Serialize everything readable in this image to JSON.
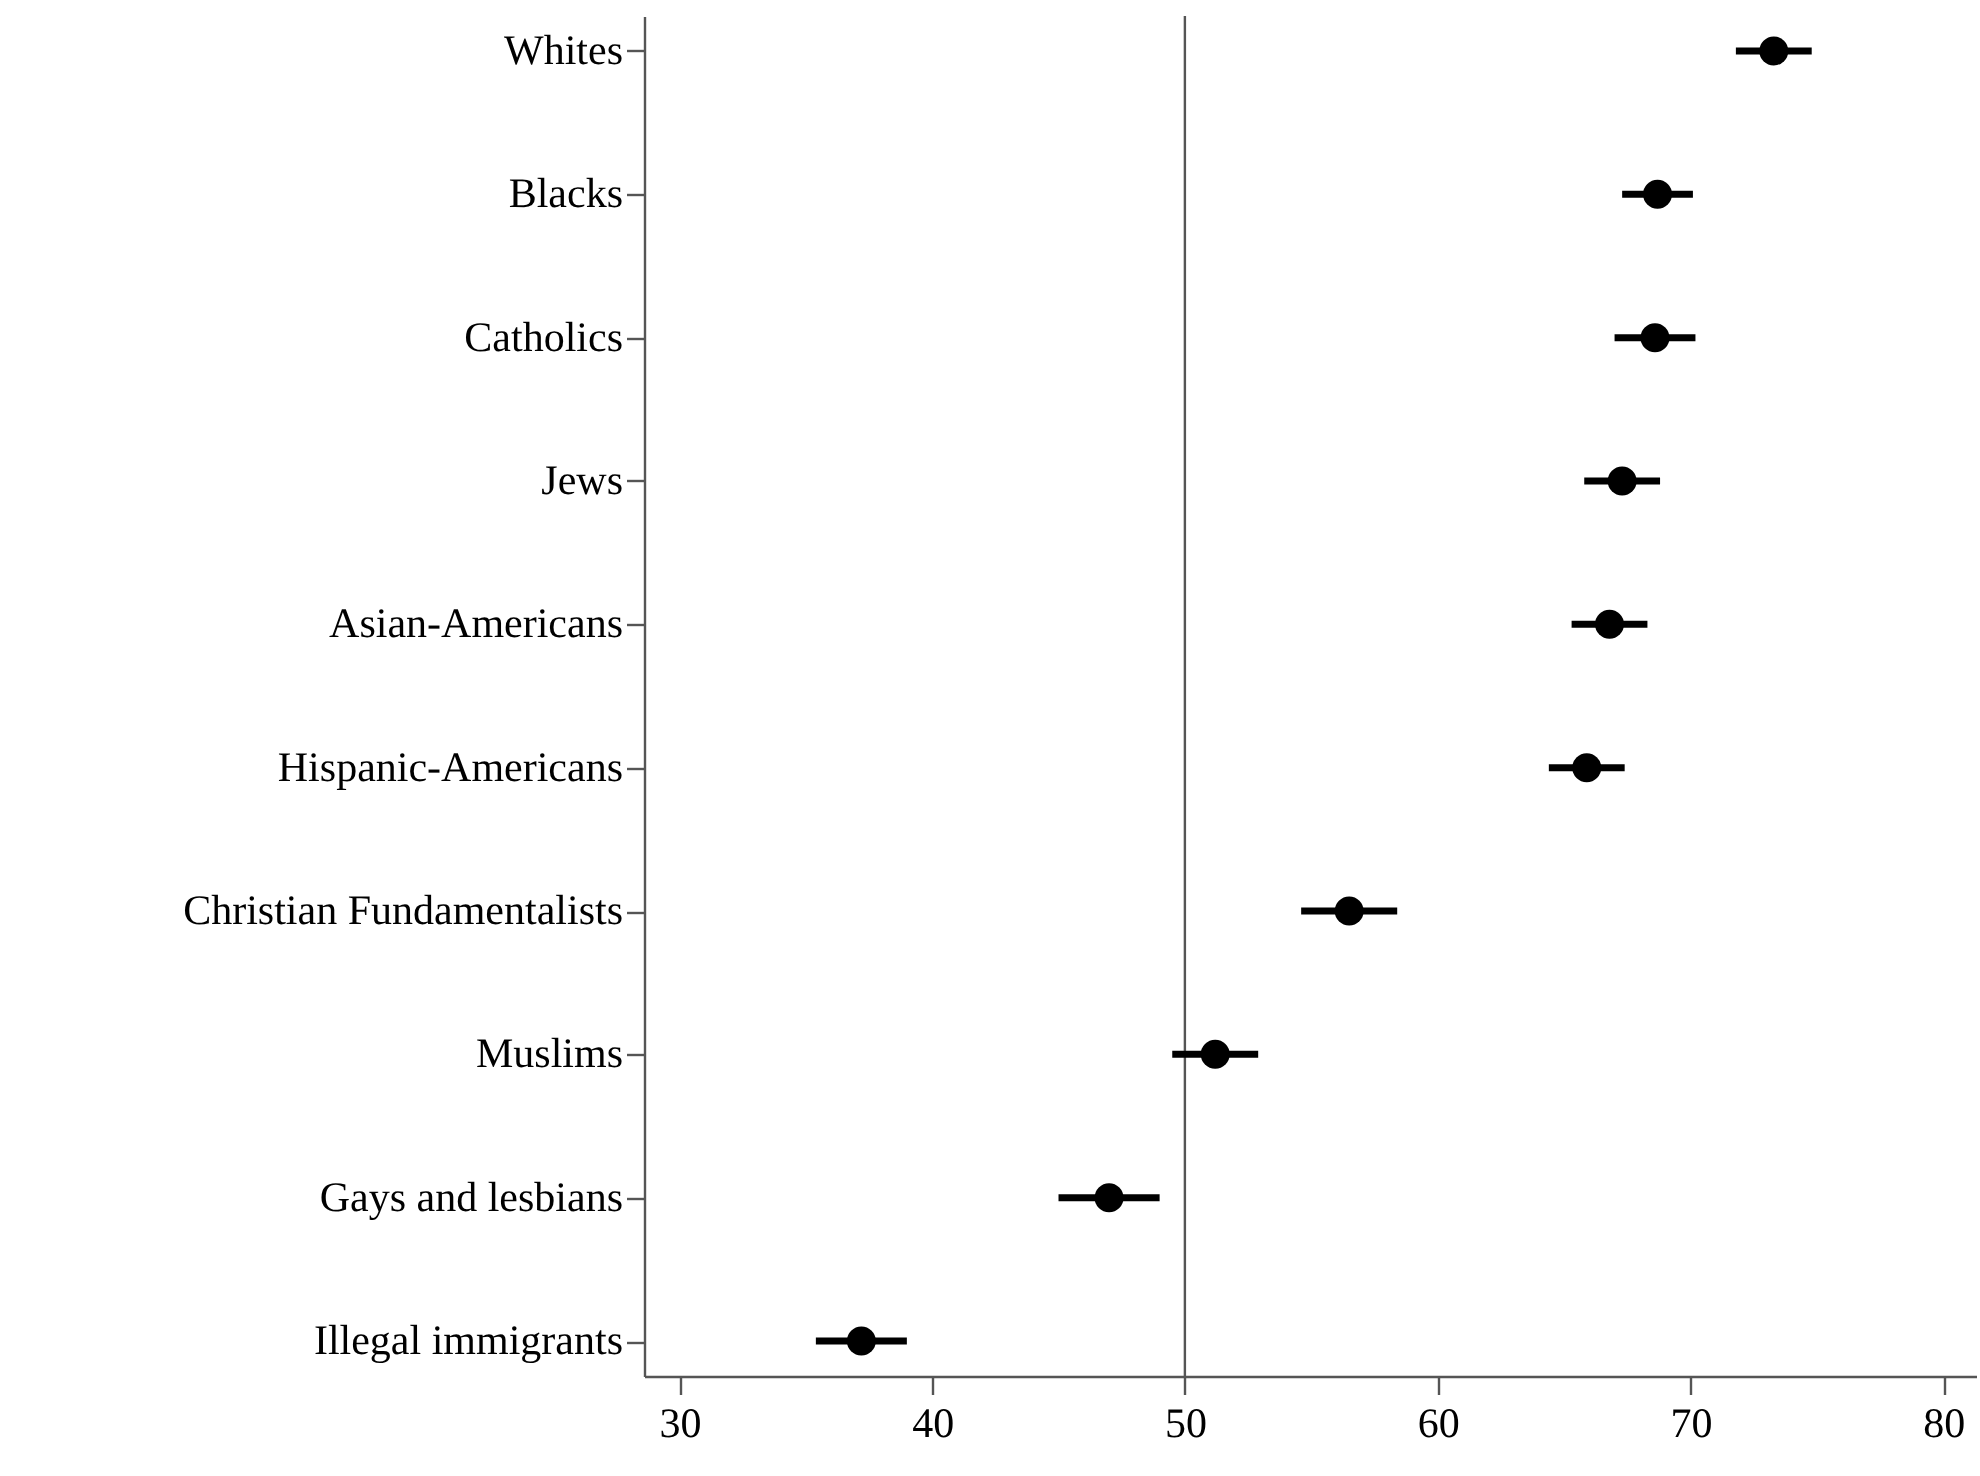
{
  "chart_data": {
    "type": "scatter",
    "orientation": "horizontal",
    "marker": "circle",
    "grid": false,
    "categories": [
      "Whites",
      "Blacks",
      "Catholics",
      "Jews",
      "Asian-Americans",
      "Hispanic-Americans",
      "Christian Fundamentalists",
      "Muslims",
      "Gays and lesbians",
      "Illegal immigrants"
    ],
    "values": [
      73.3,
      68.7,
      68.6,
      67.3,
      66.8,
      65.9,
      56.5,
      51.2,
      47.0,
      37.2
    ],
    "errors": [
      1.5,
      1.4,
      1.6,
      1.5,
      1.5,
      1.5,
      1.9,
      1.7,
      2.0,
      1.8
    ],
    "color": "#000000",
    "xlim": [
      28.6,
      81.3
    ],
    "xticks": [
      30,
      40,
      50,
      60,
      70,
      80
    ],
    "ref_lines": [
      {
        "axis": "x",
        "value": 50,
        "color": "#555555"
      }
    ]
  }
}
